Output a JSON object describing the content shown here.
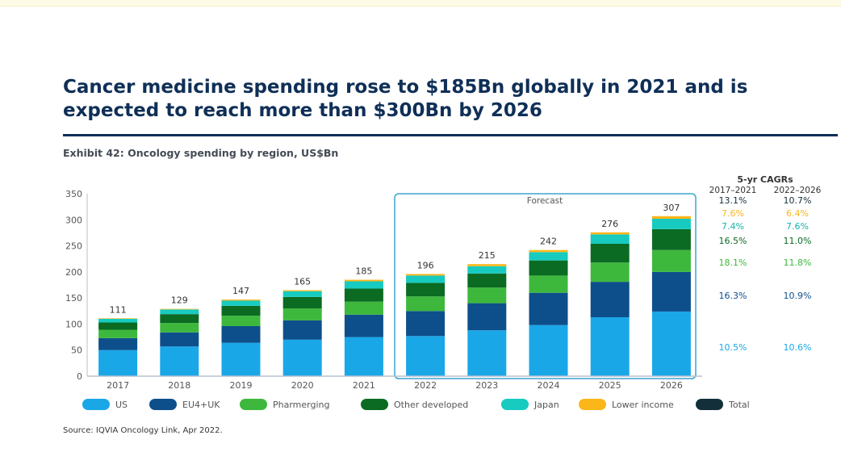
{
  "page": {
    "headline": "Cancer medicine spending rose to $185Bn globally in 2021 and is expected to reach more than $300Bn by 2026",
    "subtitle": "Exhibit 42: Oncology spending by region, US$Bn",
    "source": "Source: IQVIA Oncology Link, Apr 2022."
  },
  "chart_data": {
    "type": "bar",
    "stacked": true,
    "categories": [
      "2017",
      "2018",
      "2019",
      "2020",
      "2021",
      "2022",
      "2023",
      "2024",
      "2025",
      "2026"
    ],
    "ylim": [
      0,
      350
    ],
    "yticks": [
      0,
      50,
      100,
      150,
      200,
      250,
      300,
      350
    ],
    "grid": false,
    "legend_position": "bottom",
    "forecast_label": "Forecast",
    "forecast_range": [
      "2022",
      "2026"
    ],
    "totals": [
      111,
      129,
      147,
      165,
      185,
      196,
      215,
      242,
      276,
      307
    ],
    "series": [
      {
        "name": "US",
        "color": "#1aa7e8",
        "values": [
          50,
          57,
          64,
          70,
          75,
          77,
          88,
          98,
          113,
          124
        ]
      },
      {
        "name": "EU4+UK",
        "color": "#0d4f8b",
        "values": [
          23,
          27,
          32,
          37,
          43,
          48,
          52,
          62,
          68,
          76
        ]
      },
      {
        "name": "Pharmerging",
        "color": "#3db83d",
        "values": [
          16,
          18,
          20,
          23,
          25,
          28,
          30,
          33,
          37,
          42
        ]
      },
      {
        "name": "Other developed",
        "color": "#0b6b23",
        "values": [
          14,
          17,
          19,
          22,
          25,
          26,
          27,
          29,
          36,
          40
        ]
      },
      {
        "name": "Japan",
        "color": "#17cbc0",
        "values": [
          7,
          9,
          10,
          11,
          14,
          14,
          14,
          16,
          18,
          20
        ]
      },
      {
        "name": "Lower income",
        "color": "#fbb61a",
        "values": [
          1,
          1,
          2,
          2,
          3,
          3,
          4,
          4,
          4,
          5
        ]
      },
      {
        "name": "Total",
        "color": "#13303a",
        "values": [
          111,
          129,
          147,
          165,
          185,
          196,
          215,
          242,
          276,
          307
        ]
      }
    ],
    "cagr_table": {
      "title": "5-yr CAGRs",
      "columns": [
        "2017–2021",
        "2022–2026"
      ],
      "rows": [
        {
          "series": "Total",
          "values": [
            "13.1%",
            "10.7%"
          ],
          "color": "#13303a"
        },
        {
          "series": "Lower income",
          "values": [
            "7.6%",
            "6.4%"
          ],
          "color": "#fbb61a"
        },
        {
          "series": "Japan",
          "values": [
            "7.4%",
            "7.6%"
          ],
          "color": "#17b5aa"
        },
        {
          "series": "Other developed",
          "values": [
            "16.5%",
            "11.0%"
          ],
          "color": "#0b6b23"
        },
        {
          "series": "Pharmerging",
          "values": [
            "18.1%",
            "11.8%"
          ],
          "color": "#3db83d"
        },
        {
          "series": "EU4+UK",
          "values": [
            "16.3%",
            "10.9%"
          ],
          "color": "#0d4f8b"
        },
        {
          "series": "US",
          "values": [
            "10.5%",
            "10.6%"
          ],
          "color": "#1aa7e8"
        }
      ]
    }
  }
}
